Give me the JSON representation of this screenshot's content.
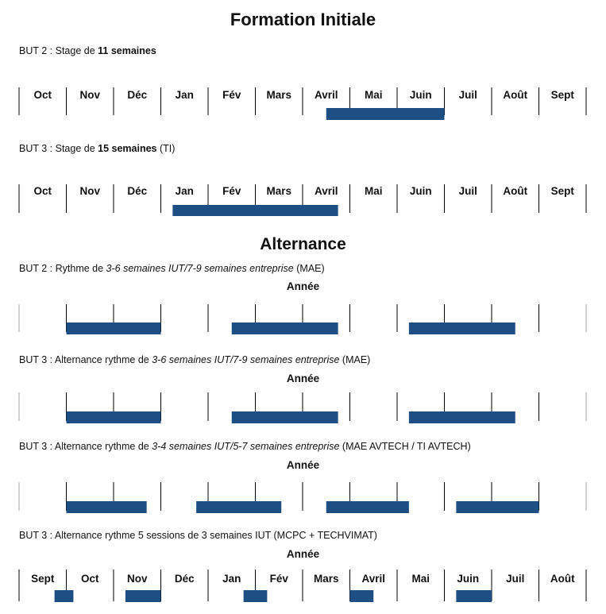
{
  "title": "Formation Initiale",
  "alternance_title": "Alternance",
  "captions": {
    "c1": {
      "a": "BUT 2 : Stage de ",
      "b": "11 semaines",
      "c": ""
    },
    "c2": {
      "a": "BUT 3 : Stage de ",
      "b": "15 semaines",
      "c": " (TI)"
    },
    "c3": {
      "a": "BUT 2 : Rythme de ",
      "i": "3-6 semaines IUT/7-9 semaines entreprise",
      "c": " (MAE)"
    },
    "c4": {
      "a": "BUT 3 : Alternance rythme de ",
      "i": "3-6 semaines IUT/7-9 semaines entreprise",
      "c": " (MAE)"
    },
    "c5": {
      "a": "BUT 3 : Alternance rythme de ",
      "i": "3-4 semaines IUT/5-7 semaines entreprise",
      "c": " (MAE AVTECH / TI AVTECH)"
    },
    "c6": {
      "a": "BUT 3 : Alternance rythme 5 sessions de 3 semaines IUT (MCPC + TECHVIMAT)"
    }
  },
  "annee_label": "Année",
  "months_oct": [
    "Oct",
    "Nov",
    "Déc",
    "Jan",
    "Fév",
    "Mars",
    "Avril",
    "Mai",
    "Juin",
    "Juil",
    "Août",
    "Sept"
  ],
  "months_sept": [
    "Sept",
    "Oct",
    "Nov",
    "Déc",
    "Jan",
    "Fév",
    "Mars",
    "Avril",
    "Mai",
    "Juin",
    "Juil",
    "Août"
  ],
  "colors": {
    "bar": "#1d4f85",
    "separator": "#000000",
    "text": "#111111"
  },
  "timelines": [
    {
      "label_set": "months_oct",
      "periods": [
        [
          6.5,
          9.0
        ]
      ]
    },
    {
      "label_set": "months_oct",
      "periods": [
        [
          3.25,
          6.75
        ]
      ]
    },
    {
      "label_set": null,
      "periods": [
        [
          1.0,
          3.0
        ],
        [
          4.5,
          6.75
        ],
        [
          8.25,
          10.5
        ]
      ]
    },
    {
      "label_set": null,
      "periods": [
        [
          1.0,
          3.0
        ],
        [
          4.5,
          6.75
        ],
        [
          8.25,
          10.5
        ]
      ]
    },
    {
      "label_set": null,
      "periods": [
        [
          1.0,
          2.7
        ],
        [
          3.75,
          5.55
        ],
        [
          6.5,
          8.25
        ],
        [
          9.25,
          11.0
        ]
      ]
    },
    {
      "label_set": "months_sept",
      "periods": [
        [
          0.75,
          1.15
        ],
        [
          2.25,
          3.0
        ],
        [
          4.75,
          5.25
        ],
        [
          7.0,
          7.5
        ],
        [
          9.25,
          10.0
        ]
      ]
    }
  ]
}
